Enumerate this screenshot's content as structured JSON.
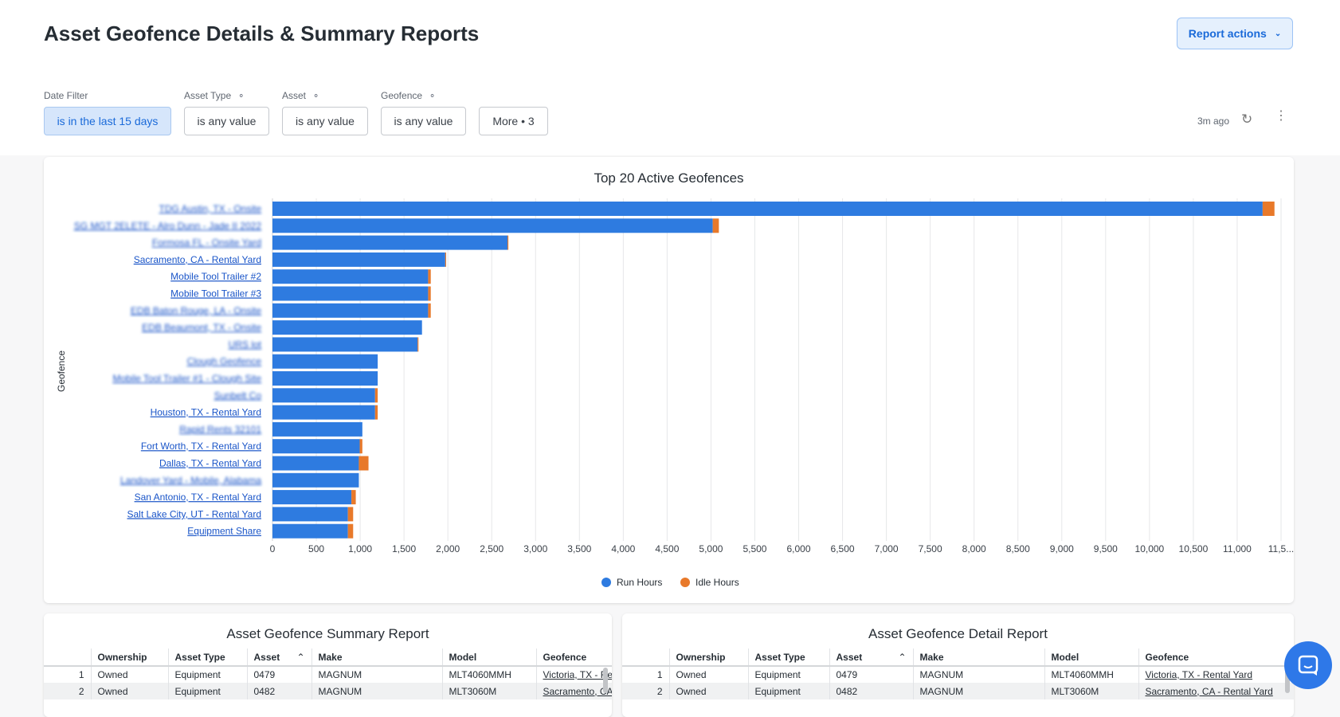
{
  "header": {
    "title": "Asset Geofence Details & Summary Reports",
    "report_actions": "Report actions"
  },
  "filters": [
    {
      "label": "Date Filter",
      "value": "is in the last 15 days",
      "linked": false
    },
    {
      "label": "Asset Type",
      "value": "is any value",
      "linked": true
    },
    {
      "label": "Asset",
      "value": "is any value",
      "linked": true
    },
    {
      "label": "Geofence",
      "value": "is any value",
      "linked": true
    },
    {
      "label": "",
      "value": "More • 3",
      "linked": false
    }
  ],
  "status": {
    "updated": "3m ago"
  },
  "colors": {
    "run": "#2e7be0",
    "idle": "#e8792a",
    "accent": "#1a6ad9"
  },
  "chart_data": {
    "type": "bar",
    "orientation": "horizontal",
    "stacked": true,
    "title": "Top 20 Active Geofences",
    "ylabel": "Geofence",
    "xlabel": "",
    "xlim": [
      0,
      11500
    ],
    "x_ticks": [
      "0",
      "500",
      "1,000",
      "1,500",
      "2,000",
      "2,500",
      "3,000",
      "3,500",
      "4,000",
      "4,500",
      "5,000",
      "5,500",
      "6,000",
      "6,500",
      "7,000",
      "7,500",
      "8,000",
      "8,500",
      "9,000",
      "9,500",
      "10,000",
      "10,500",
      "11,000",
      "11,5..."
    ],
    "legend_position": "bottom",
    "categories": [
      {
        "label": "TDG Austin, TX - Onsite",
        "blurred": true
      },
      {
        "label": "SG MGT 2ELETE - Alro Dunn - Jade II 2022",
        "blurred": true
      },
      {
        "label": "Formosa FL - Onsite Yard",
        "blurred": true
      },
      {
        "label": "Sacramento, CA - Rental Yard",
        "blurred": false
      },
      {
        "label": "Mobile Tool Trailer #2",
        "blurred": false
      },
      {
        "label": "Mobile Tool Trailer #3",
        "blurred": false
      },
      {
        "label": "EDB Baton Rouge, LA - Onsite",
        "blurred": true
      },
      {
        "label": "EDB Beaumont, TX - Onsite",
        "blurred": true
      },
      {
        "label": "URS lot",
        "blurred": true
      },
      {
        "label": "Clough Geofence",
        "blurred": true
      },
      {
        "label": "Mobile Tool Trailer #1 - Clough Site",
        "blurred": true
      },
      {
        "label": "Sunbelt Co",
        "blurred": true
      },
      {
        "label": "Houston, TX - Rental Yard",
        "blurred": false
      },
      {
        "label": "Rapid Rents 32101",
        "blurred": true
      },
      {
        "label": "Fort Worth, TX - Rental Yard",
        "blurred": false
      },
      {
        "label": "Dallas, TX - Rental Yard",
        "blurred": false
      },
      {
        "label": "Landover Yard - Mobile, Alabama",
        "blurred": true
      },
      {
        "label": "San Antonio, TX - Rental Yard",
        "blurred": false
      },
      {
        "label": "Salt Lake City, UT - Rental Yard",
        "blurred": false
      },
      {
        "label": "Equipment Share",
        "blurred": false
      }
    ],
    "series": [
      {
        "name": "Run Hours",
        "values": [
          11290,
          5020,
          2680,
          1970,
          1775,
          1775,
          1775,
          1705,
          1655,
          1200,
          1200,
          1170,
          1170,
          1025,
          995,
          985,
          985,
          900,
          860,
          860
        ]
      },
      {
        "name": "Idle Hours",
        "values": [
          135,
          70,
          10,
          10,
          30,
          30,
          30,
          0,
          10,
          0,
          0,
          30,
          30,
          0,
          30,
          110,
          0,
          50,
          60,
          60
        ]
      }
    ]
  },
  "summary": {
    "title": "Asset Geofence Summary Report",
    "columns": [
      "",
      "Ownership",
      "Asset Type",
      "Asset",
      "Make",
      "Model",
      "Geofence"
    ],
    "rows": [
      [
        "1",
        "Owned",
        "Equipment",
        "0479",
        "MAGNUM",
        "MLT4060MMH",
        "Victoria, TX - Rental Yard"
      ],
      [
        "2",
        "Owned",
        "Equipment",
        "0482",
        "MAGNUM",
        "MLT3060M",
        "Sacramento, CA - Rental Yard"
      ]
    ]
  },
  "detail": {
    "title": "Asset Geofence Detail Report",
    "columns": [
      "",
      "Ownership",
      "Asset Type",
      "Asset",
      "Make",
      "Model",
      "Geofence"
    ],
    "rows": [
      [
        "1",
        "Owned",
        "Equipment",
        "0479",
        "MAGNUM",
        "MLT4060MMH",
        "Victoria, TX - Rental Yard"
      ],
      [
        "2",
        "Owned",
        "Equipment",
        "0482",
        "MAGNUM",
        "MLT3060M",
        "Sacramento, CA - Rental Yard"
      ]
    ]
  }
}
